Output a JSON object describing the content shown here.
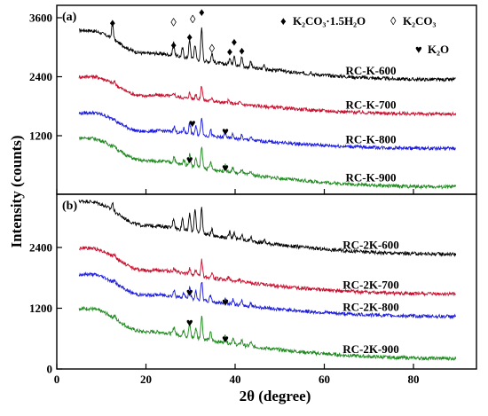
{
  "chart_data": [
    {
      "panel": "(a)",
      "type": "line",
      "xlabel": "2θ (degree)",
      "ylabel": "Intensity (counts)",
      "xlim": [
        0,
        90
      ],
      "ylim": [
        0,
        3700
      ],
      "x_ticks": [
        "0",
        "20",
        "40",
        "60",
        "80"
      ],
      "y_ticks": [
        "1200",
        "2400",
        "3600"
      ],
      "legend": [
        {
          "symbol": "♦",
          "label": "K₂CO₃·1.5H₂O"
        },
        {
          "symbol": "◊",
          "label": "K₂CO₃"
        },
        {
          "symbol": "♥",
          "label": "K₂O"
        }
      ],
      "series": [
        {
          "name": "RC-K-600",
          "color": "#000000",
          "profile": "A",
          "baseline_start": 3270,
          "baseline_end": 2340,
          "peak_scale": 1.0
        },
        {
          "name": "RC-K-700",
          "color": "#c8102e",
          "profile": "B",
          "baseline_start": 2320,
          "baseline_end": 1640,
          "peak_scale": 0.7
        },
        {
          "name": "RC-K-800",
          "color": "#1a1adc",
          "profile": "C",
          "baseline_start": 1580,
          "baseline_end": 940,
          "peak_scale": 0.8
        },
        {
          "name": "RC-K-900",
          "color": "#1f8a1f",
          "profile": "C",
          "baseline_start": 1080,
          "baseline_end": 160,
          "peak_scale": 0.9
        }
      ],
      "markers": [
        {
          "symbol": "♦",
          "x": 12.5,
          "y": 3420
        },
        {
          "symbol": "◊",
          "x": 26.2,
          "y": 3430
        },
        {
          "symbol": "♦",
          "x": 26.2,
          "y": 2970
        },
        {
          "symbol": "◊",
          "x": 30.5,
          "y": 3490
        },
        {
          "symbol": "♦",
          "x": 29.8,
          "y": 3130
        },
        {
          "symbol": "♦",
          "x": 32.5,
          "y": 3640
        },
        {
          "symbol": "◊",
          "x": 34.8,
          "y": 2900
        },
        {
          "symbol": "♦",
          "x": 38.8,
          "y": 2830
        },
        {
          "symbol": "♦",
          "x": 39.8,
          "y": 3030
        },
        {
          "symbol": "♦",
          "x": 41.5,
          "y": 2850
        },
        {
          "symbol": "♥",
          "x": 30.4,
          "y": 1370
        },
        {
          "symbol": "♥",
          "x": 37.8,
          "y": 1210
        },
        {
          "symbol": "♥",
          "x": 29.8,
          "y": 630
        },
        {
          "symbol": "♥",
          "x": 37.8,
          "y": 470
        }
      ]
    },
    {
      "panel": "(b)",
      "type": "line",
      "xlabel": "2θ (degree)",
      "ylabel": "Intensity (counts)",
      "xlim": [
        0,
        90
      ],
      "ylim": [
        0,
        3700
      ],
      "x_ticks": [
        "0",
        "20",
        "40",
        "60",
        "80"
      ],
      "y_ticks": [
        "0",
        "1200",
        "2400"
      ],
      "series": [
        {
          "name": "RC-2K-600",
          "color": "#000000",
          "profile": "A2",
          "baseline_start": 3240,
          "baseline_end": 2270,
          "peak_scale": 0.9
        },
        {
          "name": "RC-2K-700",
          "color": "#c8102e",
          "profile": "B",
          "baseline_start": 2310,
          "baseline_end": 1480,
          "peak_scale": 0.75
        },
        {
          "name": "RC-2K-800",
          "color": "#1a1adc",
          "profile": "C",
          "baseline_start": 1790,
          "baseline_end": 1040,
          "peak_scale": 0.8
        },
        {
          "name": "RC-2K-900",
          "color": "#1f8a1f",
          "profile": "C",
          "baseline_start": 1120,
          "baseline_end": 210,
          "peak_scale": 1.0
        }
      ],
      "markers": [
        {
          "symbol": "♥",
          "x": 29.8,
          "y": 1440
        },
        {
          "symbol": "♥",
          "x": 37.8,
          "y": 1240
        },
        {
          "symbol": "♥",
          "x": 29.8,
          "y": 840
        },
        {
          "symbol": "♥",
          "x": 37.8,
          "y": 520
        }
      ]
    }
  ]
}
